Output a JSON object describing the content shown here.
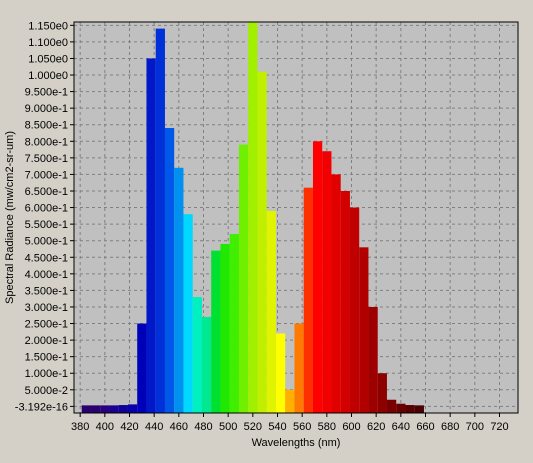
{
  "chart_data": {
    "type": "bar",
    "xlabel": "Wavelengths (nm)",
    "ylabel": "Spectral Radiance (mw/cm2-sr-um)",
    "xlim": [
      375,
      735
    ],
    "ylim": [
      -0.02,
      1.16
    ],
    "x_ticks": [
      380,
      400,
      420,
      440,
      460,
      480,
      500,
      520,
      540,
      560,
      580,
      600,
      620,
      640,
      660,
      680,
      700,
      720
    ],
    "y_ticks": [
      {
        "value": 1.15,
        "label": "1.150e0"
      },
      {
        "value": 1.1,
        "label": "1.100e0"
      },
      {
        "value": 1.05,
        "label": "1.050e0"
      },
      {
        "value": 1.0,
        "label": "1.000e0"
      },
      {
        "value": 0.95,
        "label": "9.500e-1"
      },
      {
        "value": 0.9,
        "label": "9.000e-1"
      },
      {
        "value": 0.85,
        "label": "8.500e-1"
      },
      {
        "value": 0.8,
        "label": "8.000e-1"
      },
      {
        "value": 0.75,
        "label": "7.500e-1"
      },
      {
        "value": 0.7,
        "label": "7.000e-1"
      },
      {
        "value": 0.65,
        "label": "6.500e-1"
      },
      {
        "value": 0.6,
        "label": "6.000e-1"
      },
      {
        "value": 0.55,
        "label": "5.500e-1"
      },
      {
        "value": 0.5,
        "label": "5.000e-1"
      },
      {
        "value": 0.45,
        "label": "4.500e-1"
      },
      {
        "value": 0.4,
        "label": "4.000e-1"
      },
      {
        "value": 0.35,
        "label": "3.500e-1"
      },
      {
        "value": 0.3,
        "label": "3.000e-1"
      },
      {
        "value": 0.25,
        "label": "2.500e-1"
      },
      {
        "value": 0.2,
        "label": "2.000e-1"
      },
      {
        "value": 0.15,
        "label": "1.500e-1"
      },
      {
        "value": 0.1,
        "label": "1.000e-1"
      },
      {
        "value": 0.05,
        "label": "5.000e-2"
      },
      {
        "value": 0.0,
        "label": "-3.192e-16"
      }
    ],
    "grid": true,
    "bar_width_nm": 7.5,
    "bars": [
      {
        "x": 385.0,
        "value": 0.003,
        "color": "#2a0070"
      },
      {
        "x": 392.5,
        "value": 0.001,
        "color": "#2a0070"
      },
      {
        "x": 400.0,
        "value": 0.001,
        "color": "#2a0080"
      },
      {
        "x": 407.5,
        "value": 0.002,
        "color": "#1a0090"
      },
      {
        "x": 415.0,
        "value": 0.004,
        "color": "#10009a"
      },
      {
        "x": 422.5,
        "value": 0.006,
        "color": "#0800a8"
      },
      {
        "x": 430.0,
        "value": 0.25,
        "color": "#0000b8"
      },
      {
        "x": 437.5,
        "value": 1.05,
        "color": "#0018c8"
      },
      {
        "x": 445.0,
        "value": 1.14,
        "color": "#0030d8"
      },
      {
        "x": 452.5,
        "value": 0.84,
        "color": "#0058e8"
      },
      {
        "x": 460.0,
        "value": 0.72,
        "color": "#0090f0"
      },
      {
        "x": 467.5,
        "value": 0.58,
        "color": "#00d8ff"
      },
      {
        "x": 475.0,
        "value": 0.33,
        "color": "#00f0c0"
      },
      {
        "x": 482.5,
        "value": 0.27,
        "color": "#00e890"
      },
      {
        "x": 490.0,
        "value": 0.47,
        "color": "#00e030"
      },
      {
        "x": 497.5,
        "value": 0.49,
        "color": "#20e800"
      },
      {
        "x": 505.0,
        "value": 0.52,
        "color": "#40ee00"
      },
      {
        "x": 512.5,
        "value": 0.79,
        "color": "#70f000"
      },
      {
        "x": 520.0,
        "value": 1.16,
        "color": "#a0f000"
      },
      {
        "x": 527.5,
        "value": 1.01,
        "color": "#c0f000"
      },
      {
        "x": 535.0,
        "value": 0.59,
        "color": "#e0f400"
      },
      {
        "x": 542.5,
        "value": 0.22,
        "color": "#ffff00"
      },
      {
        "x": 550.0,
        "value": 0.05,
        "color": "#ffb000"
      },
      {
        "x": 557.5,
        "value": 0.25,
        "color": "#ff7a00"
      },
      {
        "x": 565.0,
        "value": 0.66,
        "color": "#ff3000"
      },
      {
        "x": 572.5,
        "value": 0.8,
        "color": "#ff0000"
      },
      {
        "x": 580.0,
        "value": 0.77,
        "color": "#f00000"
      },
      {
        "x": 587.5,
        "value": 0.7,
        "color": "#e00000"
      },
      {
        "x": 595.0,
        "value": 0.65,
        "color": "#d20000"
      },
      {
        "x": 602.5,
        "value": 0.6,
        "color": "#c00000"
      },
      {
        "x": 610.0,
        "value": 0.48,
        "color": "#b00000"
      },
      {
        "x": 617.5,
        "value": 0.3,
        "color": "#9e0000"
      },
      {
        "x": 625.0,
        "value": 0.1,
        "color": "#8c0000"
      },
      {
        "x": 632.5,
        "value": 0.02,
        "color": "#780000"
      },
      {
        "x": 640.0,
        "value": 0.008,
        "color": "#680000"
      },
      {
        "x": 647.5,
        "value": 0.004,
        "color": "#580000"
      },
      {
        "x": 655.0,
        "value": 0.002,
        "color": "#480000"
      }
    ],
    "colors": {
      "plot_background": "#c0c0c0",
      "frame_background": "#d4d0c8",
      "gridline": "#808080"
    }
  }
}
